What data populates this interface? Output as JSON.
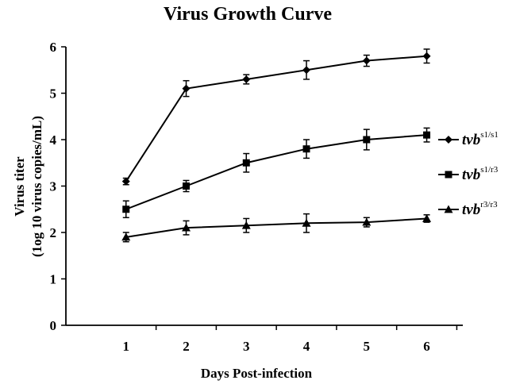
{
  "chart_data": {
    "type": "line",
    "title": "Virus Growth Curve",
    "xlabel": "Days Post-infection",
    "ylabel_lines": [
      "Virus  titer",
      "(1og 10 virus  copies/mL)"
    ],
    "x": [
      1,
      2,
      3,
      4,
      5,
      6
    ],
    "xlim": [
      0.0,
      6.6
    ],
    "ylim": [
      0,
      6
    ],
    "yticks": [
      0,
      1,
      2,
      3,
      4,
      5,
      6
    ],
    "grid": false,
    "legend_position": "right",
    "series": [
      {
        "name": "tvb s1/s1",
        "name_base": "tvb",
        "name_sup": "s1/s1",
        "marker": "diamond",
        "values": [
          3.1,
          5.1,
          5.3,
          5.5,
          5.7,
          5.8
        ],
        "errors": [
          0.07,
          0.17,
          0.1,
          0.2,
          0.12,
          0.15
        ]
      },
      {
        "name": "tvb s1/r3",
        "name_base": "tvb",
        "name_sup": "s1/r3",
        "marker": "square",
        "values": [
          2.5,
          3.0,
          3.5,
          3.8,
          4.0,
          4.1
        ],
        "errors": [
          0.18,
          0.12,
          0.2,
          0.2,
          0.22,
          0.15
        ]
      },
      {
        "name": "tvb r3/r3",
        "name_base": "tvb",
        "name_sup": "r3/r3",
        "marker": "triangle",
        "values": [
          1.9,
          2.1,
          2.15,
          2.2,
          2.22,
          2.3
        ],
        "errors": [
          0.1,
          0.15,
          0.15,
          0.2,
          0.1,
          0.08
        ]
      }
    ],
    "colors": {
      "line": "#000000",
      "background": "#ffffff"
    }
  }
}
